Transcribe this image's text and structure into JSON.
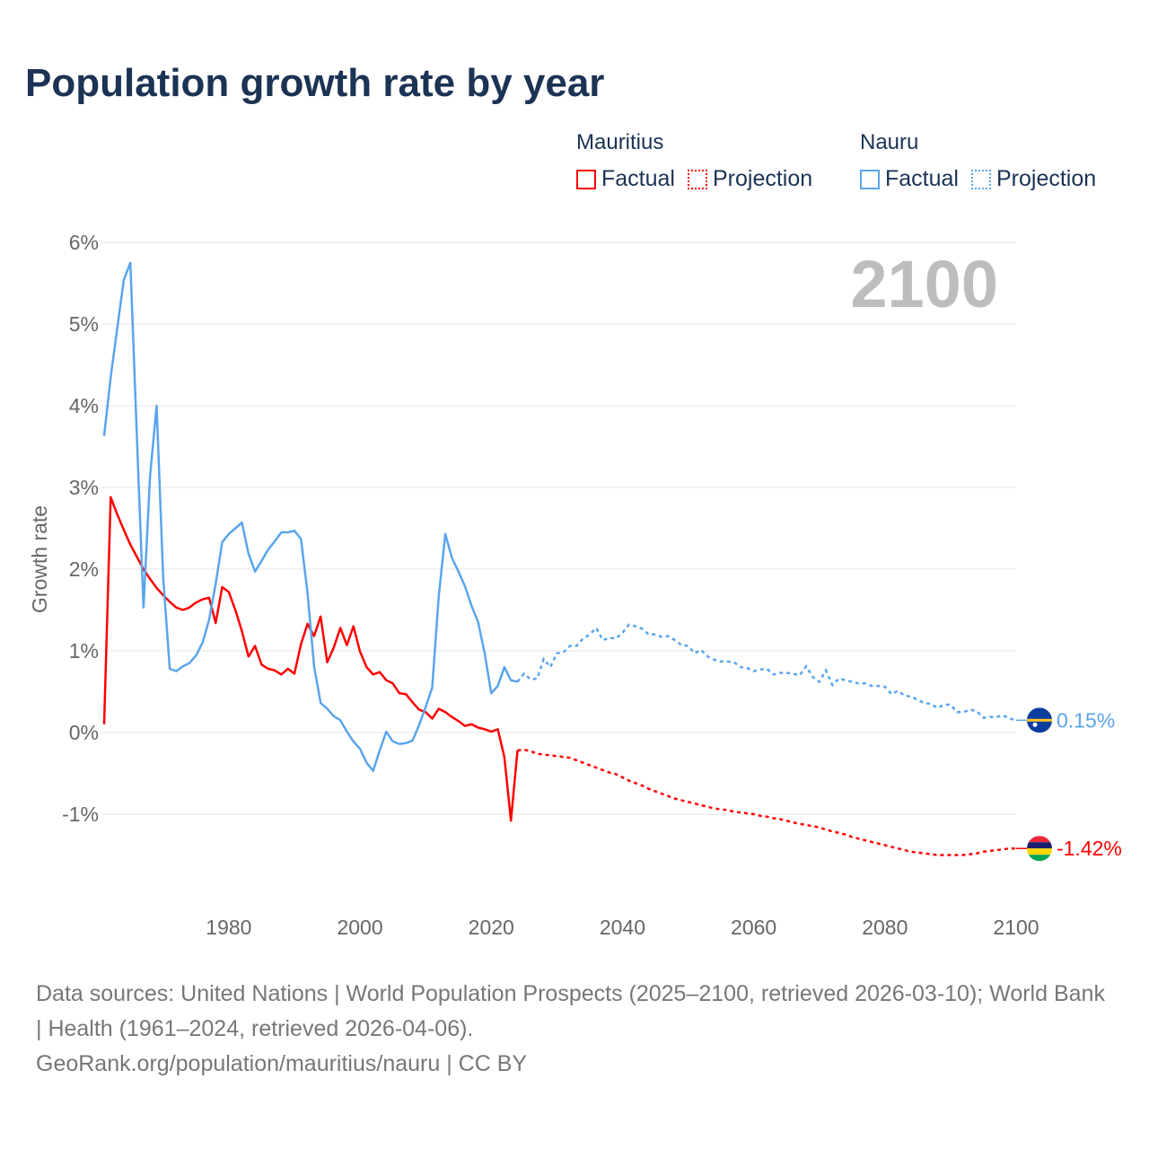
{
  "chart_data": {
    "type": "line",
    "title": "Population growth rate by year",
    "ylabel": "Growth rate",
    "xlabel": "",
    "xlim": [
      1961,
      2100
    ],
    "ylim": [
      -2,
      6
    ],
    "y_ticks": [
      6,
      5,
      4,
      3,
      2,
      1,
      0,
      -1
    ],
    "y_tick_labels": [
      "6%",
      "5%",
      "4%",
      "3%",
      "2%",
      "1%",
      "0%",
      "-1%"
    ],
    "x_ticks": [
      1980,
      2000,
      2020,
      2040,
      2060,
      2080,
      2100
    ],
    "x_tick_labels": [
      "1980",
      "2000",
      "2020",
      "2040",
      "2060",
      "2080",
      "2100"
    ],
    "grid": true,
    "current_year_label": "2100",
    "legend": {
      "placement": "top-right",
      "groups": [
        {
          "name": "Mauritius",
          "factual": "Factual",
          "projection": "Projection"
        },
        {
          "name": "Nauru",
          "factual": "Factual",
          "projection": "Projection"
        }
      ]
    },
    "series": [
      {
        "name": "Mauritius",
        "color": "#ff0000",
        "end_label": "-1.42%",
        "factual_start_year": 1961,
        "factual": [
          0.1,
          2.88,
          2.67,
          2.48,
          2.3,
          2.15,
          2.0,
          1.88,
          1.77,
          1.68,
          1.6,
          1.53,
          1.5,
          1.53,
          1.59,
          1.63,
          1.65,
          1.34,
          1.78,
          1.72,
          1.5,
          1.24,
          0.93,
          1.06,
          0.83,
          0.78,
          0.76,
          0.71,
          0.78,
          0.72,
          1.08,
          1.33,
          1.18,
          1.42,
          0.86,
          1.04,
          1.28,
          1.07,
          1.3,
          0.99,
          0.8,
          0.71,
          0.74,
          0.64,
          0.6,
          0.48,
          0.47,
          0.37,
          0.28,
          0.25,
          0.17,
          0.29,
          0.25,
          0.19,
          0.14,
          0.08,
          0.1,
          0.06,
          0.04,
          0.01,
          0.04,
          -0.3,
          -1.08,
          -0.22
        ],
        "projection_start_year": 2025,
        "projection": [
          -0.21,
          -0.23,
          -0.26,
          -0.27,
          -0.28,
          -0.29,
          -0.3,
          -0.31,
          -0.34,
          -0.37,
          -0.4,
          -0.43,
          -0.46,
          -0.49,
          -0.51,
          -0.55,
          -0.59,
          -0.62,
          -0.65,
          -0.69,
          -0.72,
          -0.75,
          -0.78,
          -0.81,
          -0.83,
          -0.85,
          -0.87,
          -0.89,
          -0.91,
          -0.93,
          -0.94,
          -0.95,
          -0.97,
          -0.98,
          -0.99,
          -1.0,
          -1.02,
          -1.03,
          -1.05,
          -1.06,
          -1.08,
          -1.1,
          -1.12,
          -1.13,
          -1.15,
          -1.16,
          -1.19,
          -1.21,
          -1.23,
          -1.25,
          -1.28,
          -1.3,
          -1.32,
          -1.34,
          -1.36,
          -1.38,
          -1.4,
          -1.42,
          -1.44,
          -1.46,
          -1.47,
          -1.48,
          -1.49,
          -1.5,
          -1.5,
          -1.5,
          -1.5,
          -1.5,
          -1.49,
          -1.48,
          -1.46,
          -1.45,
          -1.44,
          -1.43,
          -1.42,
          -1.42
        ]
      },
      {
        "name": "Nauru",
        "color": "#5aa5ec",
        "end_label": "0.15%",
        "factual_start_year": 1961,
        "factual": [
          3.63,
          4.35,
          4.95,
          5.54,
          5.75,
          3.6,
          1.53,
          3.14,
          4.0,
          1.9,
          0.78,
          0.75,
          0.81,
          0.85,
          0.94,
          1.1,
          1.38,
          1.82,
          2.33,
          2.43,
          2.5,
          2.57,
          2.19,
          1.97,
          2.1,
          2.24,
          2.34,
          2.45,
          2.45,
          2.47,
          2.37,
          1.71,
          0.81,
          0.36,
          0.29,
          0.2,
          0.15,
          0.01,
          -0.11,
          -0.2,
          -0.37,
          -0.47,
          -0.22,
          0.01,
          -0.11,
          -0.14,
          -0.13,
          -0.1,
          0.09,
          0.31,
          0.55,
          1.67,
          2.43,
          2.14,
          1.97,
          1.79,
          1.55,
          1.35,
          0.97,
          0.48,
          0.57,
          0.8,
          0.64,
          0.62
        ],
        "projection_start_year": 2025,
        "projection": [
          0.72,
          0.65,
          0.66,
          0.9,
          0.8,
          0.97,
          0.98,
          1.06,
          1.06,
          1.15,
          1.2,
          1.28,
          1.13,
          1.16,
          1.15,
          1.22,
          1.32,
          1.3,
          1.27,
          1.2,
          1.2,
          1.17,
          1.18,
          1.13,
          1.07,
          1.06,
          0.97,
          1.01,
          0.93,
          0.89,
          0.87,
          0.87,
          0.86,
          0.8,
          0.79,
          0.75,
          0.77,
          0.78,
          0.71,
          0.73,
          0.73,
          0.72,
          0.7,
          0.81,
          0.68,
          0.62,
          0.76,
          0.58,
          0.66,
          0.64,
          0.62,
          0.6,
          0.6,
          0.57,
          0.57,
          0.56,
          0.47,
          0.51,
          0.45,
          0.44,
          0.4,
          0.36,
          0.35,
          0.3,
          0.34,
          0.34,
          0.25,
          0.25,
          0.28,
          0.26,
          0.18,
          0.19,
          0.19,
          0.21,
          0.17,
          0.15
        ]
      }
    ]
  },
  "footer": {
    "sources": "Data sources: United Nations | World Population Prospects (2025–2100, retrieved 2026-03-10); World Bank | Health (1961–2024, retrieved 2026-04-06).",
    "attribution": "GeoRank.org/population/mauritius/nauru | CC BY"
  }
}
